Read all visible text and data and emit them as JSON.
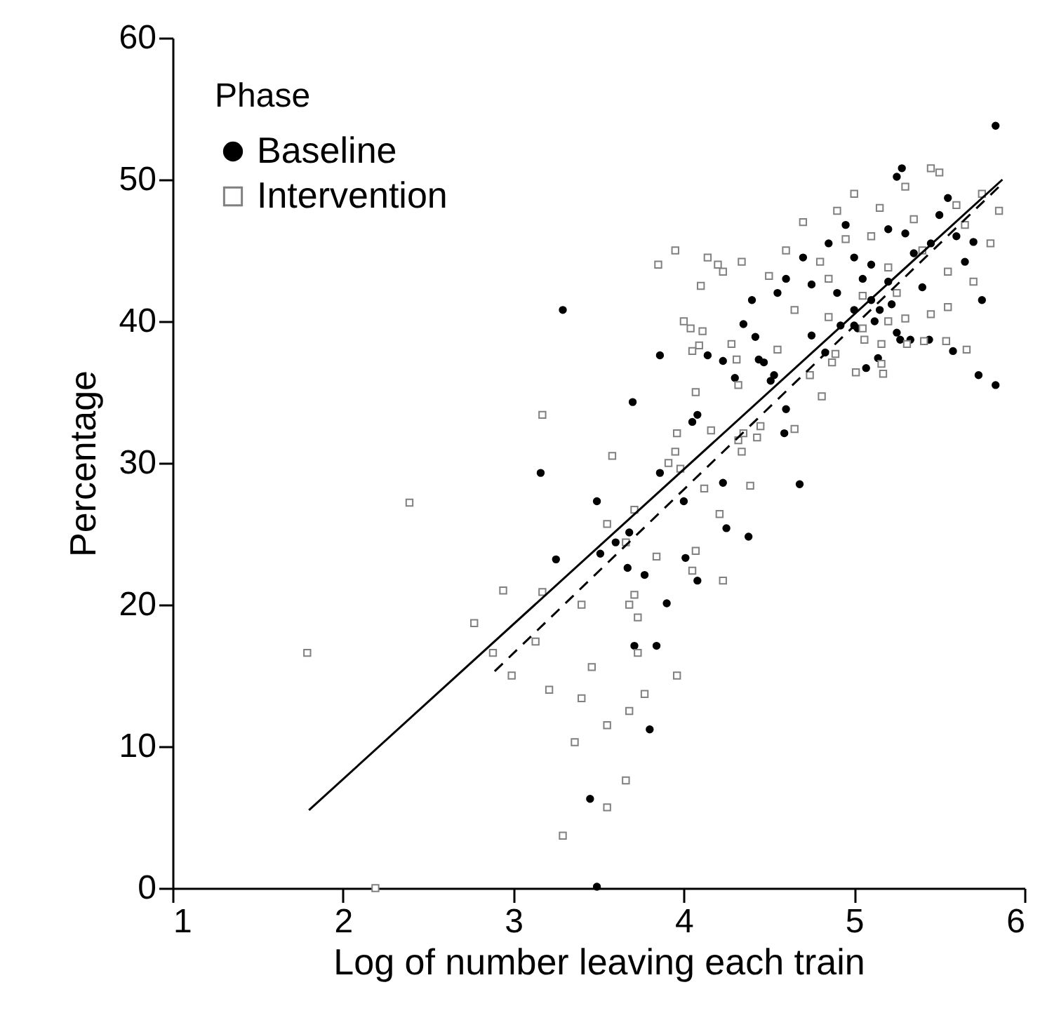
{
  "chart_data": {
    "type": "scatter",
    "xlabel": "Log of number leaving each train",
    "ylabel": "Percentage",
    "legend_title": "Phase",
    "legend": "top left",
    "grid": false,
    "xlim": [
      1,
      6
    ],
    "xticks": [
      1,
      2,
      3,
      4,
      5,
      6
    ],
    "ylim": [
      0,
      60
    ],
    "yticks": [
      0,
      10,
      20,
      30,
      40,
      50,
      60
    ],
    "series": [
      {
        "name": "Baseline",
        "type": "scatter",
        "color": "#000000",
        "marker": "circle",
        "x": [
          3.29,
          3.86,
          4.14,
          4.23,
          4.3,
          3.7,
          4.08,
          4.05,
          3.16,
          3.86,
          4.23,
          3.49,
          4.0,
          4.25,
          4.38,
          3.68,
          3.6,
          3.51,
          3.25,
          3.67,
          4.01,
          3.77,
          4.08,
          3.9,
          3.71,
          3.84,
          3.8,
          3.45,
          3.49,
          4.42,
          4.75,
          4.44,
          4.47,
          4.53,
          4.51,
          4.83,
          4.6,
          4.59,
          4.68,
          4.92,
          5.0,
          5.02,
          5.14,
          5.07,
          5.25,
          5.27,
          5.33,
          5.44,
          5.58,
          5.73,
          5.83,
          4.55,
          4.6,
          4.7,
          4.75,
          4.85,
          4.95,
          5.0,
          5.05,
          5.1,
          5.1,
          5.15,
          5.2,
          5.2,
          5.25,
          5.28,
          5.3,
          5.35,
          5.4,
          5.45,
          5.5,
          5.55,
          5.6,
          5.65,
          5.7,
          5.75,
          5.83,
          5.0,
          5.12,
          5.22,
          4.9,
          4.4,
          4.35
        ],
        "values": [
          40.8,
          37.6,
          37.6,
          37.2,
          36.0,
          34.3,
          33.4,
          32.9,
          29.3,
          29.3,
          28.6,
          27.3,
          27.3,
          25.4,
          24.8,
          25.1,
          24.4,
          23.6,
          23.2,
          22.6,
          23.3,
          22.1,
          21.7,
          20.1,
          17.1,
          17.1,
          11.2,
          6.3,
          0.1,
          38.9,
          39.0,
          37.3,
          37.1,
          36.2,
          35.8,
          37.8,
          33.8,
          32.1,
          28.5,
          39.7,
          39.7,
          39.5,
          37.4,
          36.7,
          39.2,
          38.7,
          38.7,
          38.7,
          37.9,
          36.2,
          35.5,
          42.0,
          43.0,
          44.5,
          42.6,
          45.5,
          46.8,
          44.5,
          43.0,
          41.5,
          44.0,
          40.8,
          46.5,
          42.8,
          50.2,
          50.8,
          46.2,
          44.8,
          42.4,
          45.5,
          47.5,
          48.7,
          46.0,
          44.2,
          45.6,
          41.5,
          53.8,
          40.8,
          40.0,
          41.2,
          42.0,
          41.5,
          39.8
        ]
      },
      {
        "name": "Intervention",
        "type": "scatter",
        "color": "#808080",
        "marker": "square",
        "x": [
          1.79,
          2.19,
          2.39,
          2.94,
          2.77,
          2.88,
          2.99,
          3.17,
          3.58,
          3.17,
          3.13,
          3.21,
          3.4,
          3.46,
          3.4,
          3.36,
          3.55,
          3.55,
          3.66,
          3.29,
          3.68,
          3.77,
          3.73,
          3.96,
          3.73,
          3.68,
          3.71,
          3.84,
          4.07,
          4.05,
          4.23,
          4.21,
          3.55,
          3.66,
          3.71,
          4.12,
          3.91,
          3.95,
          3.98,
          3.96,
          4.16,
          4.32,
          4.34,
          4.39,
          4.07,
          4.0,
          4.04,
          4.11,
          4.09,
          4.05,
          4.28,
          4.31,
          4.32,
          4.14,
          4.23,
          4.34,
          4.81,
          4.65,
          4.45,
          4.43,
          4.35,
          4.74,
          4.87,
          4.89,
          5.01,
          5.17,
          5.16,
          5.06,
          5.16,
          5.66,
          5.54,
          5.41,
          5.31,
          3.95,
          4.1,
          4.2,
          4.5,
          4.6,
          4.7,
          4.8,
          4.85,
          4.9,
          4.95,
          5.0,
          5.05,
          5.1,
          5.15,
          5.2,
          5.25,
          5.3,
          5.35,
          5.4,
          5.45,
          5.5,
          5.55,
          5.6,
          5.65,
          5.7,
          5.75,
          5.8,
          5.85,
          5.45,
          5.55,
          5.3,
          5.2,
          5.05,
          4.85,
          4.65,
          3.85,
          4.55
        ],
        "values": [
          16.6,
          0.0,
          27.2,
          21.0,
          18.7,
          16.6,
          15.0,
          33.4,
          30.5,
          20.9,
          17.4,
          14.0,
          20.0,
          15.6,
          13.4,
          10.3,
          11.5,
          5.7,
          7.6,
          3.7,
          12.5,
          13.7,
          16.6,
          15.0,
          19.1,
          20.0,
          20.7,
          23.4,
          23.8,
          22.4,
          21.7,
          26.4,
          25.7,
          24.4,
          26.7,
          28.2,
          30.0,
          30.8,
          29.6,
          32.1,
          32.3,
          31.6,
          30.8,
          28.4,
          35.0,
          40.0,
          39.5,
          39.3,
          38.3,
          37.9,
          38.4,
          37.3,
          35.5,
          44.5,
          43.5,
          44.2,
          34.7,
          32.4,
          32.6,
          31.8,
          32.1,
          36.2,
          37.1,
          37.7,
          36.4,
          36.3,
          37.0,
          38.7,
          38.4,
          38.0,
          38.6,
          38.6,
          38.4,
          45.0,
          42.5,
          44.0,
          43.2,
          45.0,
          47.0,
          44.2,
          43.0,
          47.8,
          45.8,
          49.0,
          41.8,
          46.0,
          48.0,
          43.8,
          42.0,
          49.5,
          47.2,
          45.0,
          50.8,
          50.5,
          43.5,
          48.2,
          46.8,
          42.8,
          49.0,
          45.5,
          47.8,
          40.5,
          41.0,
          40.2,
          40.0,
          39.5,
          40.3,
          40.8,
          44.0,
          38.0
        ]
      },
      {
        "type": "line",
        "color": "#000000",
        "line_style": "dashed",
        "x": [
          2.89,
          5.85
        ],
        "values": [
          15.3,
          49.5
        ]
      },
      {
        "type": "line",
        "color": "#000000",
        "line_style": "solid",
        "x": [
          1.8,
          5.87
        ],
        "values": [
          5.5,
          50.0
        ]
      }
    ]
  }
}
